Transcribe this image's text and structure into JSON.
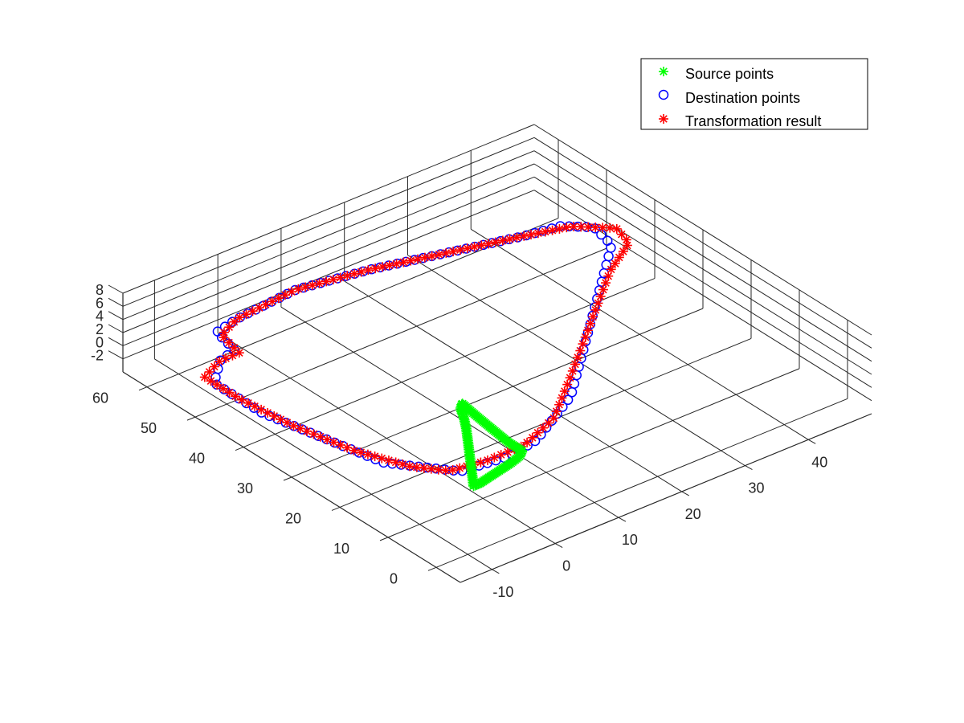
{
  "chart_data": {
    "type": "scatter3d",
    "title": "",
    "xlabel": "",
    "ylabel": "",
    "zlabel": "",
    "grid": true,
    "legend_position": "top-right",
    "xlim": [
      -15,
      50
    ],
    "ylim": [
      -5,
      65
    ],
    "zlim": [
      -4,
      8
    ],
    "xticks": [
      -10,
      0,
      10,
      20,
      30,
      40
    ],
    "yticks": [
      0,
      10,
      20,
      30,
      40,
      50,
      60
    ],
    "zticks": [
      -2,
      0,
      2,
      4,
      6,
      8
    ],
    "series": [
      {
        "name": "Source points",
        "marker": "*",
        "color": "#00ff00",
        "points": [
          [
            -3,
            8,
            0
          ],
          [
            -1,
            11,
            0
          ],
          [
            1,
            14,
            0
          ],
          [
            3,
            17,
            0
          ],
          [
            5,
            20,
            0
          ],
          [
            6.5,
            22.5,
            0
          ],
          [
            7.5,
            24.5,
            0
          ],
          [
            8.5,
            25.5,
            0
          ],
          [
            8,
            22,
            0
          ],
          [
            7.5,
            18,
            0
          ],
          [
            7,
            14,
            0
          ],
          [
            7,
            11,
            0
          ],
          [
            6,
            10.2,
            0
          ],
          [
            4,
            9.5,
            0
          ],
          [
            2,
            9,
            0
          ],
          [
            0,
            8.5,
            0
          ],
          [
            -2,
            8,
            0
          ]
        ]
      },
      {
        "name": "Destination points",
        "marker": "o",
        "color": "#0000ff",
        "points": [
          [
            -5,
            55,
            0
          ],
          [
            -4,
            60,
            0
          ],
          [
            0,
            61,
            0
          ],
          [
            10,
            62,
            0
          ],
          [
            20,
            60,
            0
          ],
          [
            30,
            57,
            0
          ],
          [
            40,
            54,
            0
          ],
          [
            45,
            53,
            0
          ],
          [
            48,
            50,
            0
          ],
          [
            47,
            45,
            0
          ],
          [
            40,
            38,
            0
          ],
          [
            30,
            28,
            0
          ],
          [
            20,
            18,
            0
          ],
          [
            10,
            12,
            0
          ],
          [
            5,
            11,
            0
          ],
          [
            -2,
            12,
            0
          ],
          [
            -5,
            16,
            0
          ],
          [
            -8,
            20,
            0
          ],
          [
            -10,
            30,
            0
          ],
          [
            -12,
            40,
            0
          ],
          [
            -12,
            50,
            0
          ],
          [
            -8,
            54,
            0
          ]
        ]
      },
      {
        "name": "Transformation result",
        "marker": "*",
        "color": "#ff0000",
        "points": [
          [
            -5,
            54,
            0
          ],
          [
            -4,
            59,
            0
          ],
          [
            0,
            61,
            0
          ],
          [
            10,
            62,
            0
          ],
          [
            20,
            60,
            0
          ],
          [
            30,
            57,
            0
          ],
          [
            40,
            54,
            0
          ],
          [
            46,
            52,
            0
          ],
          [
            50,
            48,
            0
          ],
          [
            49,
            44,
            0
          ],
          [
            43,
            40,
            0
          ],
          [
            33,
            31,
            0
          ],
          [
            23,
            22,
            0
          ],
          [
            15,
            15,
            0
          ],
          [
            8,
            12,
            0
          ],
          [
            2,
            12,
            0
          ],
          [
            -3,
            13,
            0
          ],
          [
            -6,
            17,
            0
          ],
          [
            -9,
            25,
            0
          ],
          [
            -11,
            35,
            0
          ],
          [
            -12,
            45,
            0
          ],
          [
            -12,
            52,
            0
          ],
          [
            -8,
            54,
            0
          ]
        ]
      }
    ]
  }
}
